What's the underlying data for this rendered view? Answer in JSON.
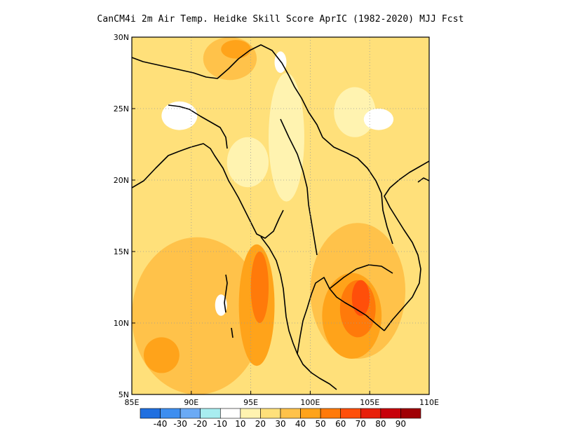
{
  "title": "CanCM4i  2m Air Temp. Heidke Skill Score AprIC (1982-2020) MJJ Fcst",
  "map": {
    "lon_range": [
      85,
      110
    ],
    "lat_range": [
      5,
      30
    ],
    "x_ticks": [
      {
        "value": 85,
        "label": "85E"
      },
      {
        "value": 90,
        "label": "90E"
      },
      {
        "value": 95,
        "label": "95E"
      },
      {
        "value": 100,
        "label": "100E"
      },
      {
        "value": 105,
        "label": "105E"
      },
      {
        "value": 110,
        "label": "110E"
      }
    ],
    "y_ticks": [
      {
        "value": 5,
        "label": "5N"
      },
      {
        "value": 10,
        "label": "10N"
      },
      {
        "value": 15,
        "label": "15N"
      },
      {
        "value": 20,
        "label": "20N"
      },
      {
        "value": 25,
        "label": "25N"
      },
      {
        "value": 30,
        "label": "30N"
      }
    ],
    "gridlines": "dotted",
    "skill_regions": [
      {
        "level": "10-20",
        "lon": [
          96.5,
          99.5
        ],
        "lat": [
          18.5,
          27.5
        ]
      },
      {
        "level": "10-20",
        "lon": [
          102.0,
          105.5
        ],
        "lat": [
          23.0,
          26.5
        ]
      },
      {
        "level": "10-20",
        "lon": [
          93.0,
          96.5
        ],
        "lat": [
          19.5,
          23.0
        ]
      },
      {
        "level": "0-10",
        "lon": [
          87.5,
          90.5
        ],
        "lat": [
          23.5,
          25.5
        ]
      },
      {
        "level": "0-10",
        "lon": [
          104.5,
          107.0
        ],
        "lat": [
          23.5,
          25.0
        ]
      },
      {
        "level": "0-10",
        "lon": [
          97.0,
          98.0
        ],
        "lat": [
          27.5,
          29.0
        ]
      },
      {
        "level": "30-40",
        "lon": [
          85.0,
          96.0
        ],
        "lat": [
          5.0,
          16.0
        ]
      },
      {
        "level": "30-40",
        "lon": [
          100.0,
          108.0
        ],
        "lat": [
          7.5,
          17.0
        ]
      },
      {
        "level": "30-40",
        "lon": [
          91.0,
          95.5
        ],
        "lat": [
          27.0,
          30.0
        ]
      },
      {
        "level": "40-50",
        "lon": [
          94.0,
          97.0
        ],
        "lat": [
          7.0,
          15.5
        ]
      },
      {
        "level": "40-50",
        "lon": [
          86.0,
          89.0
        ],
        "lat": [
          6.5,
          9.0
        ]
      },
      {
        "level": "40-50",
        "lon": [
          101.0,
          106.0
        ],
        "lat": [
          7.5,
          13.5
        ]
      },
      {
        "level": "40-50",
        "lon": [
          92.5,
          95.0
        ],
        "lat": [
          28.5,
          29.8
        ]
      },
      {
        "level": "50-60",
        "lon": [
          95.0,
          96.5
        ],
        "lat": [
          10.0,
          15.0
        ]
      },
      {
        "level": "50-60",
        "lon": [
          102.5,
          105.5
        ],
        "lat": [
          9.0,
          13.0
        ]
      },
      {
        "level": "60-70",
        "lon": [
          103.5,
          105.0
        ],
        "lat": [
          10.5,
          13.0
        ]
      },
      {
        "level": "0-10",
        "lon": [
          92.0,
          93.0
        ],
        "lat": [
          10.5,
          12.0
        ]
      }
    ]
  },
  "colorbar": {
    "colors": [
      "#1f6fe0",
      "#3d8ef0",
      "#6aaaf5",
      "#a8edf0",
      "#ffffff",
      "#fff3b0",
      "#ffe07a",
      "#ffc24a",
      "#ffa31a",
      "#ff7a0a",
      "#ff4f0a",
      "#e8200a",
      "#c8000a",
      "#a00005"
    ],
    "labels": [
      "-40",
      "-30",
      "-20",
      "-10",
      "10",
      "20",
      "30",
      "40",
      "50",
      "60",
      "70",
      "80",
      "90"
    ]
  },
  "level_colors": {
    "0-10": "#ffffff",
    "10-20": "#fff3b0",
    "20-30": "#ffe07a",
    "30-40": "#ffc24a",
    "40-50": "#ffa31a",
    "50-60": "#ff7a0a",
    "60-70": "#ff4f0a"
  }
}
